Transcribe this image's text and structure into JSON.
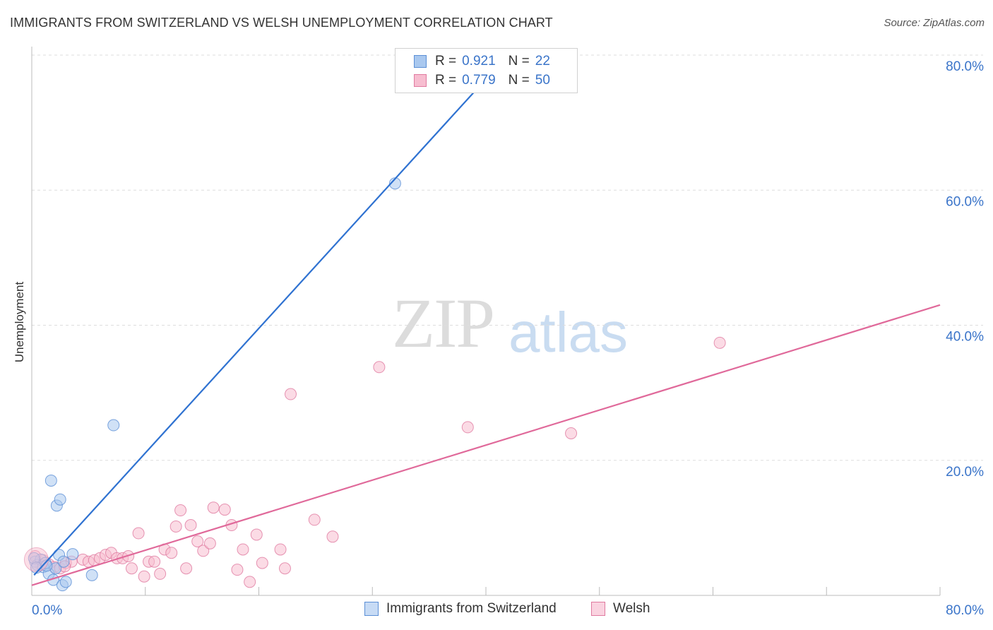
{
  "header": {
    "title": "IMMIGRANTS FROM SWITZERLAND VS WELSH UNEMPLOYMENT CORRELATION CHART",
    "source": "Source: ZipAtlas.com"
  },
  "watermark": {
    "zip": "ZIP",
    "atlas": "atlas"
  },
  "legend": {
    "rows": [
      {
        "r_label": "R =",
        "r_value": "0.921",
        "n_label": "N =",
        "n_value": "22",
        "color": "#a9c8ef",
        "border": "#5b8fd6"
      },
      {
        "r_label": "R =",
        "r_value": "0.779",
        "n_label": "N =",
        "n_value": "50",
        "color": "#f7bdd0",
        "border": "#e07aa0"
      }
    ]
  },
  "bottom_legend": {
    "items": [
      {
        "label": "Immigrants from Switzerland",
        "color": "#a9c8ef",
        "border": "#5b8fd6"
      },
      {
        "label": "Welsh",
        "color": "#f7bdd0",
        "border": "#e07aa0"
      }
    ]
  },
  "chart_data": {
    "type": "scatter",
    "title": "IMMIGRANTS FROM SWITZERLAND VS WELSH UNEMPLOYMENT CORRELATION CHART",
    "xlabel": "",
    "ylabel": "Unemployment",
    "xlim": [
      0,
      80
    ],
    "ylim": [
      0,
      80
    ],
    "x_tick_labels": [
      "0.0%",
      "80.0%"
    ],
    "y_tick_labels": [
      "20.0%",
      "40.0%",
      "60.0%",
      "80.0%"
    ],
    "y_ticks": [
      20,
      40,
      60,
      80
    ],
    "grid": true,
    "series": [
      {
        "name": "Immigrants from Switzerland",
        "color": "#5b8fd6",
        "fill": "#a9c8ef",
        "line_color": "#2f72d1",
        "points": [
          [
            0.3,
            5.0
          ],
          [
            0.5,
            4.5
          ],
          [
            0.8,
            5.3
          ],
          [
            1.0,
            4.2
          ],
          [
            1.2,
            4.8
          ],
          [
            1.5,
            3.2
          ],
          [
            1.7,
            17.0
          ],
          [
            1.9,
            2.3
          ],
          [
            2.1,
            4.0
          ],
          [
            2.2,
            13.3
          ],
          [
            2.4,
            6.0
          ],
          [
            2.5,
            14.2
          ],
          [
            2.7,
            1.5
          ],
          [
            2.8,
            5.0
          ],
          [
            3.0,
            2.0
          ],
          [
            3.6,
            6.1
          ],
          [
            5.3,
            3.0
          ],
          [
            7.2,
            25.2
          ],
          [
            32.0,
            61.0
          ],
          [
            0.2,
            5.5
          ],
          [
            0.4,
            4.1
          ],
          [
            1.3,
            4.4
          ]
        ],
        "regression": {
          "x0": 0.2,
          "y0": 3.0,
          "x1": 40.3,
          "y1": 77.0
        }
      },
      {
        "name": "Welsh",
        "color": "#e07aa0",
        "fill": "#f7bdd0",
        "line_color": "#e0699a",
        "points": [
          [
            0.3,
            5.8
          ],
          [
            1.0,
            5.2
          ],
          [
            1.5,
            4.6
          ],
          [
            2.0,
            4.2
          ],
          [
            2.5,
            4.0
          ],
          [
            3.0,
            4.8
          ],
          [
            3.5,
            5.0
          ],
          [
            4.5,
            5.3
          ],
          [
            5.0,
            5.0
          ],
          [
            5.5,
            5.2
          ],
          [
            6.0,
            5.5
          ],
          [
            6.5,
            6.0
          ],
          [
            7.0,
            6.3
          ],
          [
            7.5,
            5.5
          ],
          [
            8.0,
            5.5
          ],
          [
            8.5,
            5.8
          ],
          [
            8.8,
            4.0
          ],
          [
            9.4,
            9.2
          ],
          [
            9.9,
            2.8
          ],
          [
            10.3,
            5.0
          ],
          [
            10.8,
            5.0
          ],
          [
            11.3,
            3.2
          ],
          [
            11.7,
            6.8
          ],
          [
            12.3,
            6.3
          ],
          [
            12.7,
            10.2
          ],
          [
            13.1,
            12.6
          ],
          [
            13.6,
            4.0
          ],
          [
            14.0,
            10.4
          ],
          [
            14.6,
            8.0
          ],
          [
            15.1,
            6.6
          ],
          [
            15.7,
            7.7
          ],
          [
            16.0,
            13.0
          ],
          [
            17.0,
            12.7
          ],
          [
            17.6,
            10.4
          ],
          [
            18.1,
            3.8
          ],
          [
            18.6,
            6.8
          ],
          [
            19.2,
            2.0
          ],
          [
            19.8,
            9.0
          ],
          [
            20.3,
            4.8
          ],
          [
            21.9,
            6.8
          ],
          [
            22.3,
            4.0
          ],
          [
            24.9,
            11.2
          ],
          [
            26.5,
            8.7
          ],
          [
            22.8,
            29.8
          ],
          [
            30.6,
            33.8
          ],
          [
            38.4,
            24.9
          ],
          [
            47.5,
            24.0
          ],
          [
            60.6,
            37.4
          ],
          [
            0.8,
            4.5
          ],
          [
            2.9,
            4.3
          ]
        ],
        "regression": {
          "x0": 0.0,
          "y0": 1.5,
          "x1": 80.0,
          "y1": 43.0
        }
      }
    ]
  }
}
